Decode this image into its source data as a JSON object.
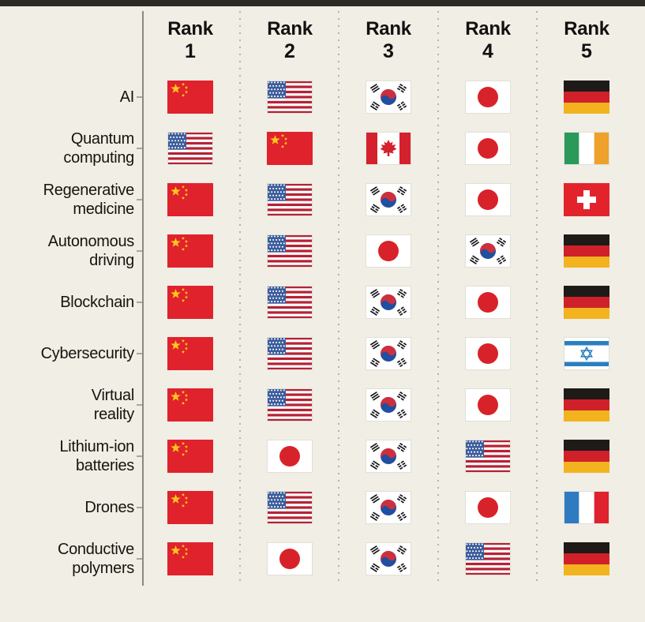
{
  "page": {
    "background_color": "#f0eee5",
    "top_bar_color": "#2c2a26",
    "axis_line_color": "#8c8a80",
    "dotted_line_color": "#b4b2a9",
    "text_color": "#121110"
  },
  "table": {
    "columns": [
      {
        "label": "Rank",
        "number": "1"
      },
      {
        "label": "Rank",
        "number": "2"
      },
      {
        "label": "Rank",
        "number": "3"
      },
      {
        "label": "Rank",
        "number": "4"
      },
      {
        "label": "Rank",
        "number": "5"
      }
    ],
    "rows": [
      {
        "label": "AI",
        "flags": [
          "china",
          "usa",
          "south-korea",
          "japan",
          "germany"
        ]
      },
      {
        "label": "Quantum\ncomputing",
        "flags": [
          "usa",
          "china",
          "canada",
          "japan",
          "ireland"
        ]
      },
      {
        "label": "Regenerative\nmedicine",
        "flags": [
          "china",
          "usa",
          "south-korea",
          "japan",
          "switzerland"
        ]
      },
      {
        "label": "Autonomous\ndriving",
        "flags": [
          "china",
          "usa",
          "japan",
          "south-korea",
          "germany"
        ]
      },
      {
        "label": "Blockchain",
        "flags": [
          "china",
          "usa",
          "south-korea",
          "japan",
          "germany"
        ]
      },
      {
        "label": "Cybersecurity",
        "flags": [
          "china",
          "usa",
          "south-korea",
          "japan",
          "israel"
        ]
      },
      {
        "label": "Virtual\nreality",
        "flags": [
          "china",
          "usa",
          "south-korea",
          "japan",
          "germany"
        ]
      },
      {
        "label": "Lithium-ion\nbatteries",
        "flags": [
          "china",
          "japan",
          "south-korea",
          "usa",
          "germany"
        ]
      },
      {
        "label": "Drones",
        "flags": [
          "china",
          "usa",
          "south-korea",
          "japan",
          "france"
        ]
      },
      {
        "label": "Conductive\npolymers",
        "flags": [
          "china",
          "japan",
          "south-korea",
          "usa",
          "germany"
        ]
      }
    ],
    "flag_palette": {
      "china_red": "#e0222c",
      "china_gold": "#fdc61c",
      "us_stripe_red": "#b52234",
      "us_canton_blue": "#3b5c9b",
      "white": "#ffffff",
      "kr_red": "#cf2e3c",
      "kr_blue": "#1f4fa0",
      "kr_black": "#17151a",
      "japan_red": "#d8222a",
      "germany_black": "#1d1a17",
      "germany_red": "#d0202a",
      "germany_gold": "#f2b31e",
      "canada_red": "#d5202d",
      "ireland_green": "#2a9a5b",
      "ireland_orange": "#eea12b",
      "swiss_red": "#e2232c",
      "israel_blue": "#2a7fc0",
      "france_blue": "#2f7bc0",
      "france_red": "#df222d",
      "flag_border": "#e1dfd6"
    }
  },
  "chart_data": {
    "type": "table",
    "title": "",
    "columns": [
      "Rank 1",
      "Rank 2",
      "Rank 3",
      "Rank 4",
      "Rank 5"
    ],
    "categories": [
      "AI",
      "Quantum computing",
      "Regenerative medicine",
      "Autonomous driving",
      "Blockchain",
      "Cybersecurity",
      "Virtual reality",
      "Lithium-ion batteries",
      "Drones",
      "Conductive polymers"
    ],
    "rankings": {
      "AI": [
        "China",
        "United States",
        "South Korea",
        "Japan",
        "Germany"
      ],
      "Quantum computing": [
        "United States",
        "China",
        "Canada",
        "Japan",
        "Ireland"
      ],
      "Regenerative medicine": [
        "China",
        "United States",
        "South Korea",
        "Japan",
        "Switzerland"
      ],
      "Autonomous driving": [
        "China",
        "United States",
        "Japan",
        "South Korea",
        "Germany"
      ],
      "Blockchain": [
        "China",
        "United States",
        "South Korea",
        "Japan",
        "Germany"
      ],
      "Cybersecurity": [
        "China",
        "United States",
        "South Korea",
        "Japan",
        "Israel"
      ],
      "Virtual reality": [
        "China",
        "United States",
        "South Korea",
        "Japan",
        "Germany"
      ],
      "Lithium-ion batteries": [
        "China",
        "Japan",
        "South Korea",
        "United States",
        "Germany"
      ],
      "Drones": [
        "China",
        "United States",
        "South Korea",
        "Japan",
        "France"
      ],
      "Conductive polymers": [
        "China",
        "Japan",
        "South Korea",
        "United States",
        "Germany"
      ]
    },
    "legend_position": "none",
    "grid": "dotted column separators, solid left axis with row ticks"
  }
}
